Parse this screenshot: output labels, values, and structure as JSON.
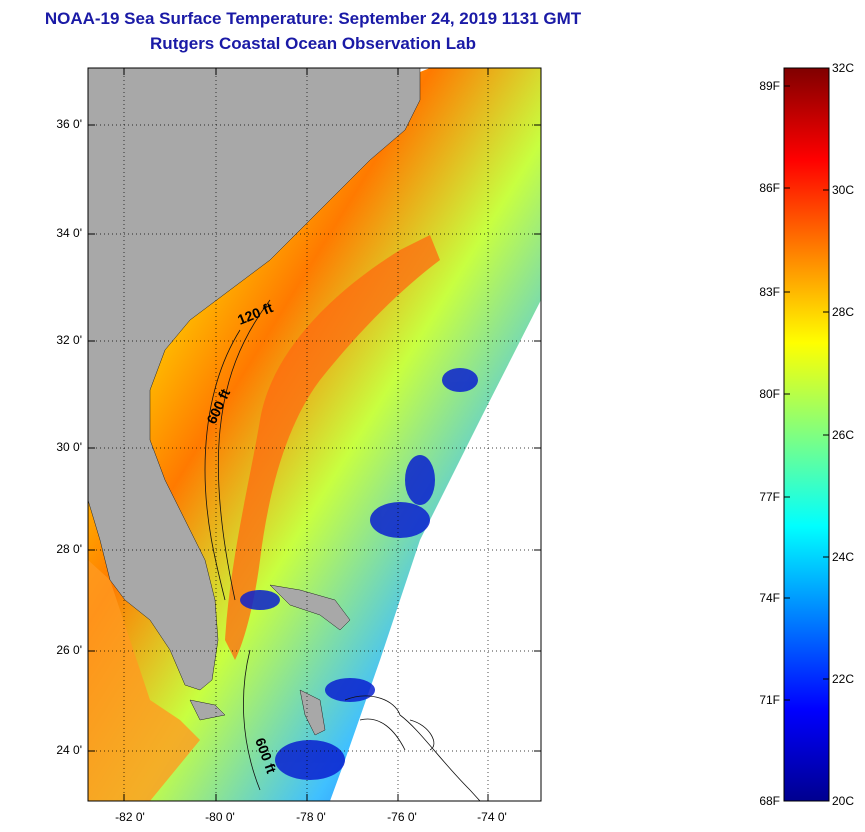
{
  "header": {
    "title": "NOAA-19 Sea Surface Temperature:  September 24, 2019 1131 GMT",
    "subtitle": "Rutgers Coastal Ocean Observation Lab"
  },
  "map": {
    "lat_ticks": [
      "36 0'",
      "34 0'",
      "32 0'",
      "30 0'",
      "28 0'",
      "26 0'",
      "24 0'"
    ],
    "lon_ticks": [
      "-82 0'",
      "-80 0'",
      "-78 0'",
      "-76 0'",
      "-74 0'"
    ],
    "lat_range": [
      23,
      37
    ],
    "lon_range": [
      -83,
      -73
    ],
    "contour_labels": [
      "120 ft",
      "600 ft",
      "600 ft"
    ],
    "colors": {
      "land": "#a8a8a8",
      "grid": "#000000",
      "title": "#1a1aa6"
    }
  },
  "legend": {
    "fahrenheit_ticks": [
      "89F",
      "86F",
      "83F",
      "80F",
      "77F",
      "74F",
      "71F",
      "68F"
    ],
    "celsius_ticks": [
      "32C",
      "30C",
      "28C",
      "26C",
      "24C",
      "22C",
      "20C"
    ],
    "range_c": [
      20,
      32
    ],
    "palette": [
      "#00008f",
      "#0000ff",
      "#0080ff",
      "#00ffff",
      "#80ff80",
      "#ffff00",
      "#ff8000",
      "#ff0000",
      "#800000"
    ]
  }
}
